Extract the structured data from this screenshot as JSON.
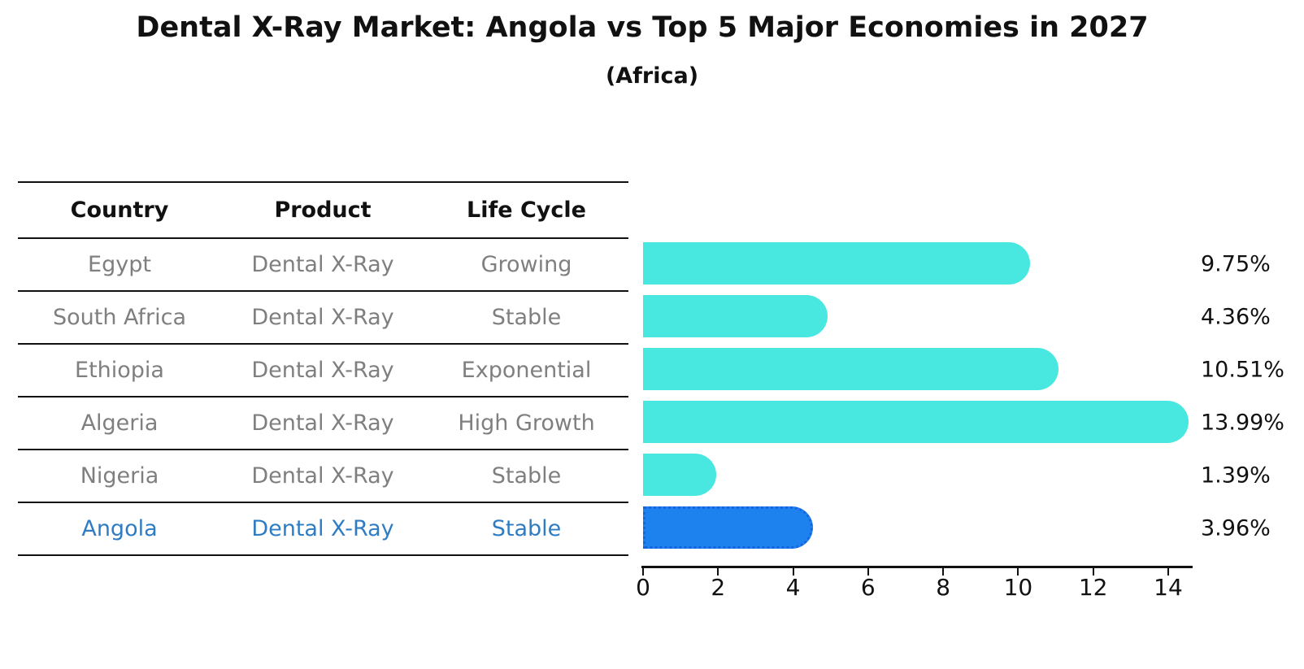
{
  "title": "Dental X-Ray Market: Angola vs Top 5 Major Economies in 2027",
  "subtitle": "(Africa)",
  "table": {
    "headers": [
      "Country",
      "Product",
      "Life Cycle"
    ],
    "rows": [
      {
        "country": "Egypt",
        "product": "Dental X-Ray",
        "life_cycle": "Growing",
        "highlight": false
      },
      {
        "country": "South Africa",
        "product": "Dental X-Ray",
        "life_cycle": "Stable",
        "highlight": false
      },
      {
        "country": "Ethiopia",
        "product": "Dental X-Ray",
        "life_cycle": "Exponential",
        "highlight": false
      },
      {
        "country": "Algeria",
        "product": "Dental X-Ray",
        "life_cycle": "High Growth",
        "highlight": false
      },
      {
        "country": "Nigeria",
        "product": "Dental X-Ray",
        "life_cycle": "Stable",
        "highlight": false
      },
      {
        "country": "Angola",
        "product": "Dental X-Ray",
        "life_cycle": "Stable",
        "highlight": true
      }
    ]
  },
  "chart_data": {
    "type": "bar",
    "orientation": "horizontal",
    "title": "Dental X-Ray Market: Angola vs Top 5 Major Economies in 2027",
    "subtitle": "(Africa)",
    "categories": [
      "Egypt",
      "South Africa",
      "Ethiopia",
      "Algeria",
      "Nigeria",
      "Angola"
    ],
    "values": [
      9.75,
      4.36,
      10.51,
      13.99,
      1.39,
      3.96
    ],
    "value_labels": [
      "9.75%",
      "4.36%",
      "10.51%",
      "13.99%",
      "1.39%",
      "3.96%"
    ],
    "highlight_category": "Angola",
    "x_ticks": [
      0,
      2,
      4,
      6,
      8,
      10,
      12,
      14
    ],
    "xlim": [
      0,
      14.8
    ],
    "xlabel": "",
    "ylabel": "",
    "grid": false,
    "legend": "none"
  },
  "colors": {
    "bar": "#48e7e0",
    "highlight_bar": "#1e82ee",
    "highlight_bar_border": "#1565e0",
    "highlight_text": "#2e7cc3",
    "row_text": "#7f7f7f",
    "header_text": "#111111",
    "axis": "#111111",
    "background": "#ffffff"
  }
}
